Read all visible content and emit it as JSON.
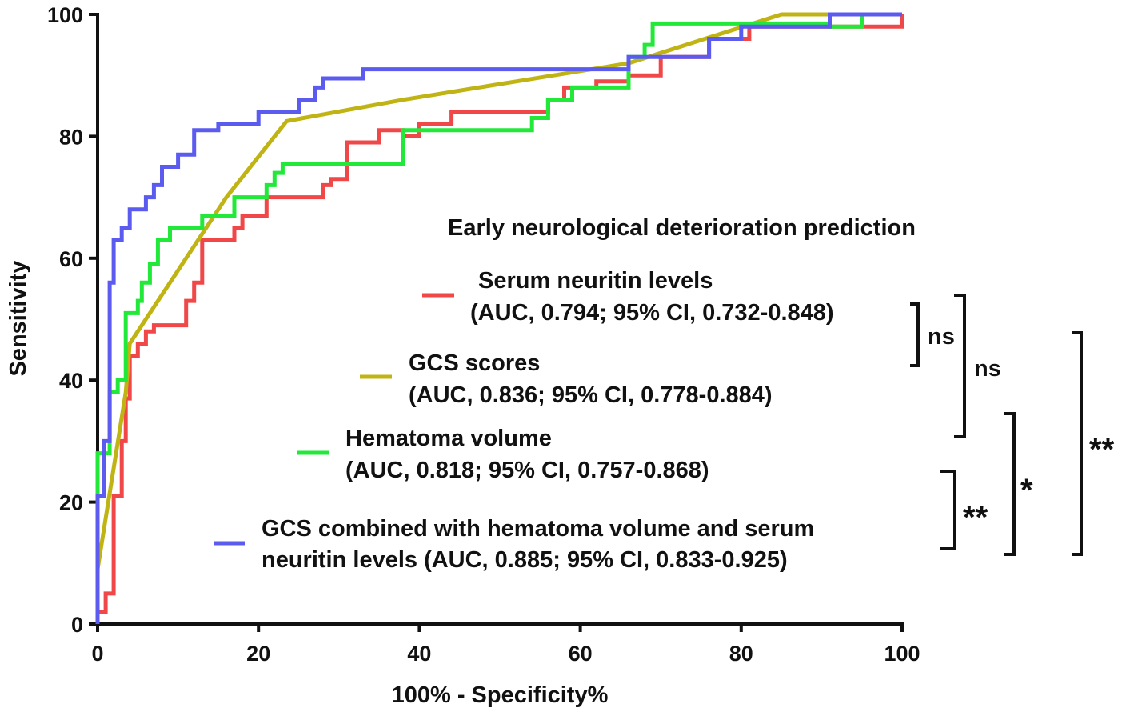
{
  "chart_data": {
    "type": "line",
    "title": "Early neurological deterioration  prediction",
    "title_color": "#b31ed6",
    "xlabel": "100% - Specificity%",
    "ylabel": "Sensitivity",
    "xlim": [
      0,
      100
    ],
    "ylim": [
      0,
      100
    ],
    "xticks": [
      0,
      20,
      40,
      60,
      80,
      100
    ],
    "yticks": [
      0,
      20,
      40,
      60,
      80,
      100
    ],
    "series": [
      {
        "name": "Serum neuritin levels",
        "label_line1": "Serum neuritin levels",
        "label_line2": "(AUC, 0.794; 95% CI, 0.732-0.848)",
        "color": "#f04848",
        "step": true,
        "points": [
          [
            0,
            0
          ],
          [
            0,
            2
          ],
          [
            1,
            2
          ],
          [
            1,
            5
          ],
          [
            2,
            5
          ],
          [
            2,
            21
          ],
          [
            3,
            21
          ],
          [
            3,
            30
          ],
          [
            3.5,
            30
          ],
          [
            3.5,
            37
          ],
          [
            4,
            37
          ],
          [
            4,
            44
          ],
          [
            5,
            44
          ],
          [
            5,
            46
          ],
          [
            6,
            46
          ],
          [
            6,
            48
          ],
          [
            7,
            48
          ],
          [
            7,
            49
          ],
          [
            11,
            49
          ],
          [
            11,
            53
          ],
          [
            12,
            53
          ],
          [
            12,
            56
          ],
          [
            13,
            56
          ],
          [
            13,
            63
          ],
          [
            17,
            63
          ],
          [
            17,
            65
          ],
          [
            18,
            65
          ],
          [
            18,
            67
          ],
          [
            21,
            67
          ],
          [
            21,
            70
          ],
          [
            28,
            70
          ],
          [
            28,
            72
          ],
          [
            29,
            72
          ],
          [
            29,
            73
          ],
          [
            31,
            73
          ],
          [
            31,
            79
          ],
          [
            35,
            79
          ],
          [
            35,
            81
          ],
          [
            38,
            81
          ],
          [
            38,
            80
          ],
          [
            40,
            80
          ],
          [
            40,
            82
          ],
          [
            44,
            82
          ],
          [
            44,
            84
          ],
          [
            56,
            84
          ],
          [
            56,
            86
          ],
          [
            58,
            86
          ],
          [
            58,
            88
          ],
          [
            62,
            88
          ],
          [
            62,
            89
          ],
          [
            66,
            89
          ],
          [
            66,
            90
          ],
          [
            70,
            90
          ],
          [
            70,
            93
          ],
          [
            76,
            93
          ],
          [
            76,
            96
          ],
          [
            81,
            96
          ],
          [
            81,
            98
          ],
          [
            100,
            98
          ],
          [
            100,
            100
          ]
        ]
      },
      {
        "name": "GCS scores",
        "label_line1": "GCS scores",
        "label_line2": "(AUC, 0.836; 95% CI, 0.778-0.884)",
        "color": "#c0b414",
        "step": false,
        "points": [
          [
            0,
            7
          ],
          [
            0,
            9
          ],
          [
            3.5,
            38
          ],
          [
            4,
            46
          ],
          [
            10,
            58
          ],
          [
            16,
            70
          ],
          [
            23.5,
            82.5
          ],
          [
            38,
            86
          ],
          [
            66,
            92
          ],
          [
            85,
            100
          ],
          [
            100,
            100
          ]
        ]
      },
      {
        "name": "Hematoma volume",
        "label_line1": "Hematoma volume",
        "label_line2": "(AUC, 0.818; 95% CI, 0.757-0.868)",
        "color": "#22e83a",
        "step": true,
        "points": [
          [
            0,
            21
          ],
          [
            0,
            28
          ],
          [
            1.5,
            28
          ],
          [
            1.5,
            38
          ],
          [
            2.5,
            38
          ],
          [
            2.5,
            40
          ],
          [
            3.5,
            40
          ],
          [
            3.5,
            51
          ],
          [
            5,
            51
          ],
          [
            5,
            53
          ],
          [
            5.5,
            53
          ],
          [
            5.5,
            56
          ],
          [
            6.5,
            56
          ],
          [
            6.5,
            59
          ],
          [
            7.5,
            59
          ],
          [
            7.5,
            63
          ],
          [
            9,
            63
          ],
          [
            9,
            65
          ],
          [
            13,
            65
          ],
          [
            13,
            67
          ],
          [
            17,
            67
          ],
          [
            17,
            70
          ],
          [
            21,
            70
          ],
          [
            21,
            72
          ],
          [
            22,
            72
          ],
          [
            22,
            74
          ],
          [
            23,
            74
          ],
          [
            23,
            75.5
          ],
          [
            38,
            75.5
          ],
          [
            38,
            81
          ],
          [
            54,
            81
          ],
          [
            54,
            83
          ],
          [
            56,
            83
          ],
          [
            56,
            86
          ],
          [
            59,
            86
          ],
          [
            59,
            88
          ],
          [
            66,
            88
          ],
          [
            66,
            93
          ],
          [
            68,
            93
          ],
          [
            68,
            95
          ],
          [
            69,
            95
          ],
          [
            69,
            98.5
          ],
          [
            91,
            98.5
          ],
          [
            91,
            98
          ],
          [
            95,
            98
          ],
          [
            95,
            100
          ],
          [
            100,
            100
          ]
        ]
      },
      {
        "name": "GCS combined with hematoma volume and serum neuritin levels",
        "label_line1": "GCS combined with hematoma volume and serum",
        "label_line2": "neuritin levels (AUC, 0.885; 95% CI, 0.833-0.925)",
        "color": "#5b5bf0",
        "step": true,
        "points": [
          [
            0,
            0
          ],
          [
            0,
            21
          ],
          [
            0.8,
            21
          ],
          [
            0.8,
            30
          ],
          [
            1.5,
            30
          ],
          [
            1.5,
            56
          ],
          [
            2,
            56
          ],
          [
            2,
            63
          ],
          [
            3,
            63
          ],
          [
            3,
            65
          ],
          [
            4,
            65
          ],
          [
            4,
            68
          ],
          [
            6,
            68
          ],
          [
            6,
            70
          ],
          [
            7,
            70
          ],
          [
            7,
            72
          ],
          [
            8,
            72
          ],
          [
            8,
            75
          ],
          [
            10,
            75
          ],
          [
            10,
            77
          ],
          [
            12,
            77
          ],
          [
            12,
            81
          ],
          [
            15,
            81
          ],
          [
            15,
            82
          ],
          [
            20,
            82
          ],
          [
            20,
            84
          ],
          [
            25,
            84
          ],
          [
            25,
            86
          ],
          [
            27,
            86
          ],
          [
            27,
            88
          ],
          [
            28,
            88
          ],
          [
            28,
            89.5
          ],
          [
            33,
            89.5
          ],
          [
            33,
            91
          ],
          [
            66,
            91
          ],
          [
            66,
            93
          ],
          [
            76,
            93
          ],
          [
            76,
            96
          ],
          [
            80,
            96
          ],
          [
            80,
            98
          ],
          [
            91,
            98
          ],
          [
            91,
            100
          ],
          [
            100,
            100
          ]
        ]
      }
    ],
    "significance": [
      {
        "label": "ns",
        "compare": [
          "Serum neuritin levels",
          "GCS scores"
        ]
      },
      {
        "label": "ns",
        "compare": [
          "Serum neuritin levels",
          "Hematoma volume"
        ]
      },
      {
        "label": "**",
        "compare": [
          "Hematoma volume",
          "GCS combined with hematoma volume and serum neuritin levels"
        ]
      },
      {
        "label": "*",
        "compare": [
          "GCS scores",
          "GCS combined with hematoma volume and serum neuritin levels"
        ]
      },
      {
        "label": "**",
        "compare": [
          "Serum neuritin levels",
          "GCS combined with hematoma volume and serum neuritin levels"
        ]
      }
    ]
  }
}
